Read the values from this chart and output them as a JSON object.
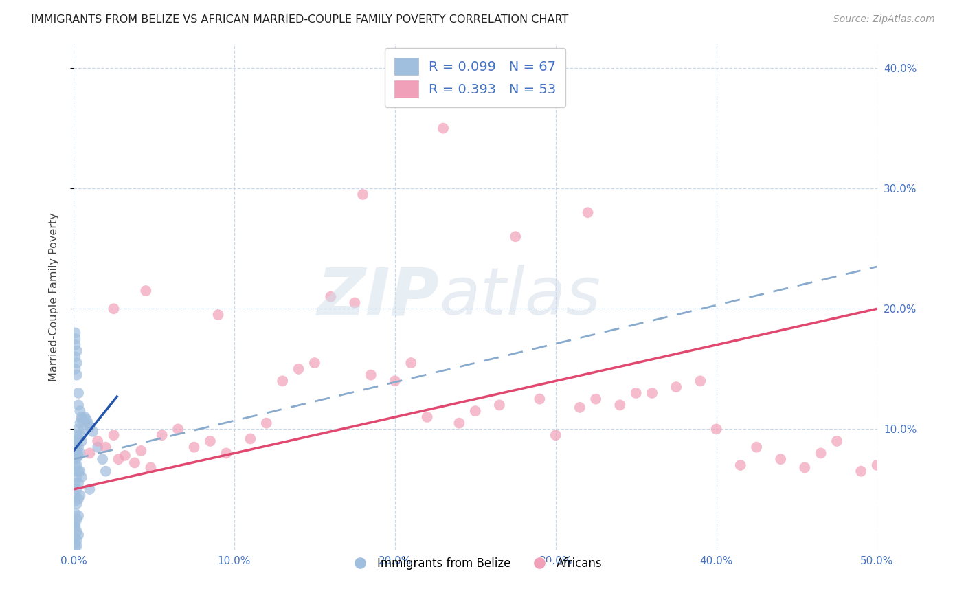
{
  "title": "IMMIGRANTS FROM BELIZE VS AFRICAN MARRIED-COUPLE FAMILY POVERTY CORRELATION CHART",
  "source": "Source: ZipAtlas.com",
  "ylabel": "Married-Couple Family Poverty",
  "xlim": [
    0.0,
    0.5
  ],
  "ylim": [
    0.0,
    0.42
  ],
  "belize_scatter_color": "#a0bedd",
  "africans_scatter_color": "#f0a0b8",
  "belize_line_color": "#2255aa",
  "africans_line_color": "#e04870",
  "dashed_line_color": "#88aacc",
  "grid_color": "#c8d8e8",
  "title_color": "#222222",
  "axis_color": "#4472c4",
  "background": "#ffffff",
  "belize_R": 0.099,
  "belize_N": 67,
  "africans_R": 0.393,
  "africans_N": 53,
  "belize_x": [
    0.001,
    0.001,
    0.001,
    0.001,
    0.001,
    0.001,
    0.001,
    0.001,
    0.001,
    0.001,
    0.002,
    0.002,
    0.002,
    0.002,
    0.002,
    0.002,
    0.002,
    0.002,
    0.002,
    0.002,
    0.003,
    0.003,
    0.003,
    0.003,
    0.003,
    0.003,
    0.003,
    0.003,
    0.004,
    0.004,
    0.004,
    0.004,
    0.004,
    0.005,
    0.005,
    0.005,
    0.007,
    0.008,
    0.009,
    0.01,
    0.012,
    0.015,
    0.018,
    0.02,
    0.001,
    0.001,
    0.001,
    0.001,
    0.001,
    0.002,
    0.002,
    0.002,
    0.003,
    0.003,
    0.004,
    0.005,
    0.006,
    0.001,
    0.001,
    0.002,
    0.003,
    0.001,
    0.002,
    0.001,
    0.001,
    0.001,
    0.01
  ],
  "belize_y": [
    0.09,
    0.085,
    0.08,
    0.075,
    0.07,
    0.065,
    0.055,
    0.045,
    0.04,
    0.03,
    0.095,
    0.088,
    0.082,
    0.076,
    0.07,
    0.06,
    0.05,
    0.038,
    0.025,
    0.015,
    0.1,
    0.092,
    0.085,
    0.078,
    0.065,
    0.055,
    0.042,
    0.028,
    0.105,
    0.095,
    0.08,
    0.065,
    0.045,
    0.108,
    0.09,
    0.06,
    0.11,
    0.108,
    0.105,
    0.102,
    0.098,
    0.085,
    0.075,
    0.065,
    0.15,
    0.16,
    0.17,
    0.175,
    0.18,
    0.155,
    0.165,
    0.145,
    0.13,
    0.12,
    0.115,
    0.11,
    0.1,
    0.01,
    0.005,
    0.008,
    0.012,
    0.002,
    0.003,
    0.018,
    0.022,
    0.02,
    0.05
  ],
  "africans_x": [
    0.01,
    0.015,
    0.02,
    0.025,
    0.028,
    0.032,
    0.038,
    0.042,
    0.048,
    0.055,
    0.065,
    0.075,
    0.085,
    0.095,
    0.11,
    0.12,
    0.13,
    0.14,
    0.15,
    0.16,
    0.175,
    0.185,
    0.2,
    0.21,
    0.22,
    0.24,
    0.25,
    0.265,
    0.275,
    0.29,
    0.3,
    0.315,
    0.325,
    0.34,
    0.35,
    0.36,
    0.375,
    0.39,
    0.4,
    0.415,
    0.425,
    0.44,
    0.455,
    0.465,
    0.475,
    0.49,
    0.5,
    0.025,
    0.045,
    0.09,
    0.18,
    0.23,
    0.32
  ],
  "africans_y": [
    0.08,
    0.09,
    0.085,
    0.095,
    0.075,
    0.078,
    0.072,
    0.082,
    0.068,
    0.095,
    0.1,
    0.085,
    0.09,
    0.08,
    0.092,
    0.105,
    0.14,
    0.15,
    0.155,
    0.21,
    0.205,
    0.145,
    0.14,
    0.155,
    0.11,
    0.105,
    0.115,
    0.12,
    0.26,
    0.125,
    0.095,
    0.118,
    0.125,
    0.12,
    0.13,
    0.13,
    0.135,
    0.14,
    0.1,
    0.07,
    0.085,
    0.075,
    0.068,
    0.08,
    0.09,
    0.065,
    0.07,
    0.2,
    0.215,
    0.195,
    0.295,
    0.35,
    0.28
  ],
  "belize_line_x0": 0.0,
  "belize_line_x1": 0.027,
  "belize_line_y0": 0.082,
  "belize_line_y1": 0.127,
  "africans_line_x0": 0.0,
  "africans_line_x1": 0.5,
  "africans_line_y0": 0.05,
  "africans_line_y1": 0.2,
  "dashed_line_x0": 0.0,
  "dashed_line_x1": 0.5,
  "dashed_line_y0": 0.075,
  "dashed_line_y1": 0.235
}
